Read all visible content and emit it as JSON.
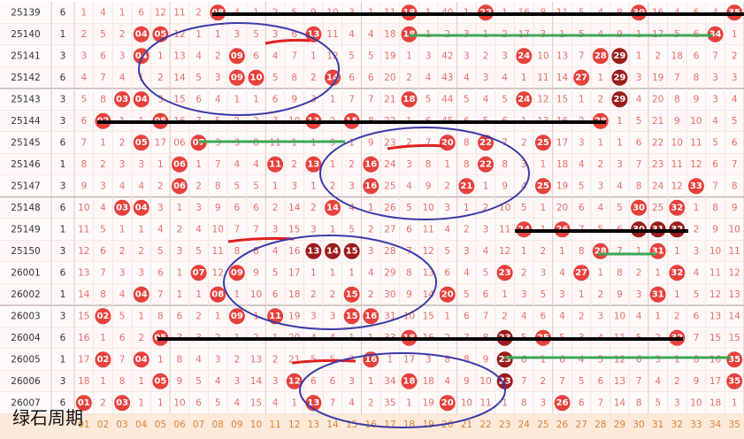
{
  "watermark": "绿石周期",
  "columns": [
    "01",
    "02",
    "03",
    "04",
    "05",
    "06",
    "07",
    "08",
    "09",
    "10",
    "11",
    "12",
    "13",
    "14",
    "15",
    "16",
    "17",
    "18",
    "19",
    "20",
    "21",
    "22",
    "23",
    "24",
    "25",
    "26",
    "27",
    "28",
    "29",
    "30",
    "31",
    "32",
    "33",
    "34",
    "35"
  ],
  "rows": [
    {
      "period": "25139",
      "tail": "6",
      "cells": [
        "1",
        "4",
        "1",
        "6",
        "12",
        "11",
        "2",
        "08",
        "4",
        "1",
        "2",
        "5",
        "9",
        "10",
        "3",
        "1",
        "11",
        "18",
        "1",
        "40",
        "1",
        "22",
        "1",
        "16",
        "8",
        "11",
        "5",
        "4",
        "8",
        "30",
        "16",
        "4",
        "6",
        "4",
        "35"
      ],
      "hits": [
        8,
        18,
        22,
        30,
        35
      ],
      "dark": []
    },
    {
      "period": "25140",
      "tail": "1",
      "cells": [
        "2",
        "5",
        "2",
        "04",
        "05",
        "12",
        "1",
        "1",
        "3",
        "5",
        "3",
        "6",
        "13",
        "11",
        "4",
        "4",
        "18",
        "18",
        "1",
        "2",
        "3",
        "1",
        "2",
        "17",
        "3",
        "1",
        "5",
        "4",
        "9",
        "1",
        "17",
        "5",
        "6",
        "34",
        "1"
      ],
      "hits": [
        4,
        5,
        13,
        18,
        34
      ],
      "dark": []
    },
    {
      "period": "25141",
      "tail": "3",
      "cells": [
        "3",
        "6",
        "3",
        "04",
        "1",
        "13",
        "4",
        "2",
        "09",
        "6",
        "4",
        "7",
        "1",
        "12",
        "5",
        "5",
        "19",
        "1",
        "3",
        "42",
        "3",
        "2",
        "3",
        "24",
        "10",
        "13",
        "7",
        "28",
        "29",
        "1",
        "2",
        "18",
        "6",
        "7",
        "2"
      ],
      "hits": [
        4,
        9,
        24,
        28,
        29
      ],
      "dark": [
        29
      ]
    },
    {
      "period": "25142",
      "tail": "6",
      "cells": [
        "4",
        "7",
        "4",
        "1",
        "2",
        "14",
        "5",
        "3",
        "09",
        "10",
        "5",
        "8",
        "2",
        "14",
        "6",
        "6",
        "20",
        "2",
        "4",
        "43",
        "4",
        "3",
        "4",
        "1",
        "11",
        "14",
        "27",
        "1",
        "29",
        "3",
        "19",
        "7",
        "8",
        "3",
        "3"
      ],
      "hits": [
        9,
        10,
        14,
        27,
        29
      ],
      "dark": [
        29
      ]
    },
    {
      "period": "25143",
      "tail": "3",
      "cells": [
        "5",
        "8",
        "03",
        "04",
        "3",
        "15",
        "6",
        "4",
        "1",
        "1",
        "6",
        "9",
        "3",
        "1",
        "7",
        "7",
        "21",
        "18",
        "5",
        "44",
        "5",
        "4",
        "5",
        "24",
        "12",
        "15",
        "1",
        "2",
        "29",
        "4",
        "20",
        "8",
        "9",
        "3",
        "4"
      ],
      "hits": [
        3,
        4,
        18,
        24,
        29
      ],
      "dark": [
        29
      ]
    },
    {
      "period": "25144",
      "tail": "3",
      "cells": [
        "6",
        "02",
        "1",
        "1",
        "05",
        "16",
        "7",
        "5",
        "2",
        "2",
        "7",
        "10",
        "13",
        "2",
        "15",
        "8",
        "22",
        "1",
        "6",
        "45",
        "6",
        "5",
        "6",
        "1",
        "13",
        "16",
        "2",
        "28",
        "1",
        "5",
        "21",
        "9",
        "10",
        "4",
        "5"
      ],
      "hits": [
        2,
        5,
        13,
        15,
        28
      ],
      "dark": []
    },
    {
      "period": "25145",
      "tail": "6",
      "cells": [
        "7",
        "1",
        "2",
        "05",
        "17",
        "06",
        "07",
        "3",
        "3",
        "8",
        "11",
        "1",
        "1",
        "9",
        "1",
        "9",
        "23",
        "2",
        "7",
        "20",
        "8",
        "22",
        "7",
        "2",
        "25",
        "17",
        "3",
        "1",
        "1",
        "6",
        "22",
        "10",
        "11",
        "5",
        "6"
      ],
      "hits": [
        4,
        7,
        20,
        22,
        25
      ],
      "dark": []
    },
    {
      "period": "25146",
      "tail": "1",
      "cells": [
        "8",
        "2",
        "3",
        "3",
        "1",
        "06",
        "1",
        "7",
        "4",
        "4",
        "11",
        "2",
        "13",
        "1",
        "2",
        "16",
        "24",
        "3",
        "8",
        "1",
        "8",
        "22",
        "8",
        "3",
        "1",
        "18",
        "4",
        "2",
        "3",
        "7",
        "23",
        "11",
        "12",
        "6",
        "7"
      ],
      "hits": [
        6,
        11,
        13,
        16,
        22
      ],
      "dark": []
    },
    {
      "period": "25147",
      "tail": "3",
      "cells": [
        "9",
        "3",
        "4",
        "4",
        "2",
        "06",
        "2",
        "8",
        "5",
        "5",
        "1",
        "3",
        "1",
        "2",
        "3",
        "16",
        "25",
        "4",
        "9",
        "2",
        "21",
        "1",
        "9",
        "4",
        "25",
        "19",
        "5",
        "3",
        "4",
        "8",
        "24",
        "12",
        "33",
        "7",
        "8"
      ],
      "hits": [
        6,
        16,
        21,
        25,
        33
      ],
      "dark": []
    },
    {
      "period": "25148",
      "tail": "6",
      "cells": [
        "10",
        "4",
        "03",
        "04",
        "3",
        "1",
        "3",
        "9",
        "6",
        "6",
        "2",
        "14",
        "2",
        "14",
        "4",
        "1",
        "26",
        "5",
        "10",
        "3",
        "1",
        "2",
        "10",
        "5",
        "1",
        "20",
        "6",
        "4",
        "5",
        "30",
        "25",
        "32",
        "1",
        "8",
        "9"
      ],
      "hits": [
        3,
        4,
        14,
        30,
        32
      ],
      "dark": []
    },
    {
      "period": "25149",
      "tail": "1",
      "cells": [
        "11",
        "5",
        "1",
        "1",
        "4",
        "2",
        "4",
        "10",
        "7",
        "7",
        "3",
        "15",
        "3",
        "1",
        "5",
        "2",
        "27",
        "6",
        "11",
        "4",
        "2",
        "3",
        "11",
        "24",
        "1",
        "26",
        "7",
        "5",
        "6",
        "30",
        "31",
        "32",
        "2",
        "9",
        "10"
      ],
      "hits": [
        24,
        26,
        30,
        31,
        32
      ],
      "dark": [
        30,
        31,
        32
      ]
    },
    {
      "period": "25150",
      "tail": "3",
      "cells": [
        "12",
        "6",
        "2",
        "2",
        "5",
        "3",
        "5",
        "11",
        "8",
        "8",
        "4",
        "16",
        "13",
        "14",
        "15",
        "3",
        "28",
        "7",
        "12",
        "5",
        "3",
        "4",
        "12",
        "1",
        "2",
        "1",
        "8",
        "28",
        "7",
        "1",
        "31",
        "1",
        "3",
        "10",
        "11"
      ],
      "hits": [
        13,
        14,
        15,
        28,
        31
      ],
      "dark": [
        13,
        14,
        15
      ]
    },
    {
      "period": "26001",
      "tail": "6",
      "cells": [
        "13",
        "7",
        "3",
        "3",
        "6",
        "1",
        "07",
        "12",
        "09",
        "9",
        "5",
        "17",
        "1",
        "1",
        "1",
        "4",
        "29",
        "8",
        "13",
        "6",
        "4",
        "5",
        "23",
        "2",
        "3",
        "4",
        "27",
        "1",
        "8",
        "2",
        "1",
        "32",
        "4",
        "11",
        "12"
      ],
      "hits": [
        7,
        9,
        23,
        27,
        32
      ],
      "dark": []
    },
    {
      "period": "26002",
      "tail": "1",
      "cells": [
        "14",
        "8",
        "4",
        "04",
        "7",
        "1",
        "1",
        "08",
        "1",
        "10",
        "6",
        "18",
        "2",
        "2",
        "15",
        "2",
        "30",
        "9",
        "14",
        "20",
        "5",
        "6",
        "1",
        "3",
        "5",
        "3",
        "1",
        "2",
        "9",
        "3",
        "31",
        "1",
        "5",
        "12",
        "13"
      ],
      "hits": [
        4,
        8,
        15,
        20,
        31
      ],
      "dark": []
    },
    {
      "period": "26003",
      "tail": "3",
      "cells": [
        "15",
        "02",
        "5",
        "1",
        "8",
        "6",
        "2",
        "1",
        "09",
        "1",
        "11",
        "19",
        "3",
        "3",
        "15",
        "16",
        "31",
        "10",
        "15",
        "1",
        "6",
        "7",
        "2",
        "4",
        "6",
        "4",
        "2",
        "3",
        "10",
        "4",
        "1",
        "2",
        "6",
        "13",
        "14"
      ],
      "hits": [
        2,
        9,
        11,
        15,
        16
      ],
      "dark": []
    },
    {
      "period": "26004",
      "tail": "6",
      "cells": [
        "16",
        "1",
        "6",
        "2",
        "05",
        "7",
        "3",
        "2",
        "1",
        "2",
        "1",
        "20",
        "4",
        "4",
        "1",
        "1",
        "33",
        "18",
        "16",
        "2",
        "7",
        "8",
        "23",
        "5",
        "25",
        "5",
        "3",
        "4",
        "11",
        "5",
        "2",
        "32",
        "7",
        "15",
        "15"
      ],
      "hits": [
        5,
        18,
        23,
        25,
        32
      ],
      "dark": [
        23
      ]
    },
    {
      "period": "26005",
      "tail": "1",
      "cells": [
        "17",
        "02",
        "7",
        "04",
        "1",
        "8",
        "4",
        "3",
        "2",
        "13",
        "2",
        "21",
        "5",
        "5",
        "2",
        "16",
        "1",
        "17",
        "3",
        "8",
        "8",
        "9",
        "23",
        "6",
        "1",
        "6",
        "4",
        "5",
        "12",
        "6",
        "3",
        "1",
        "8",
        "16",
        "35"
      ],
      "hits": [
        2,
        4,
        16,
        23,
        35
      ],
      "dark": [
        23
      ]
    },
    {
      "period": "26006",
      "tail": "3",
      "cells": [
        "18",
        "1",
        "8",
        "1",
        "05",
        "9",
        "5",
        "4",
        "3",
        "14",
        "3",
        "12",
        "6",
        "6",
        "3",
        "1",
        "34",
        "18",
        "18",
        "4",
        "9",
        "10",
        "23",
        "7",
        "2",
        "7",
        "5",
        "6",
        "13",
        "7",
        "4",
        "2",
        "9",
        "17",
        "35"
      ],
      "hits": [
        5,
        12,
        18,
        23,
        35
      ],
      "dark": [
        23
      ]
    },
    {
      "period": "26007",
      "tail": "6",
      "cells": [
        "01",
        "2",
        "03",
        "1",
        "1",
        "10",
        "6",
        "5",
        "4",
        "15",
        "4",
        "1",
        "13",
        "7",
        "4",
        "2",
        "35",
        "1",
        "19",
        "20",
        "10",
        "11",
        "1",
        "8",
        "3",
        "26",
        "6",
        "7",
        "14",
        "8",
        "5",
        "3",
        "10",
        "18",
        "1"
      ],
      "hits": [
        1,
        3,
        13,
        20,
        26
      ],
      "dark": []
    }
  ]
}
